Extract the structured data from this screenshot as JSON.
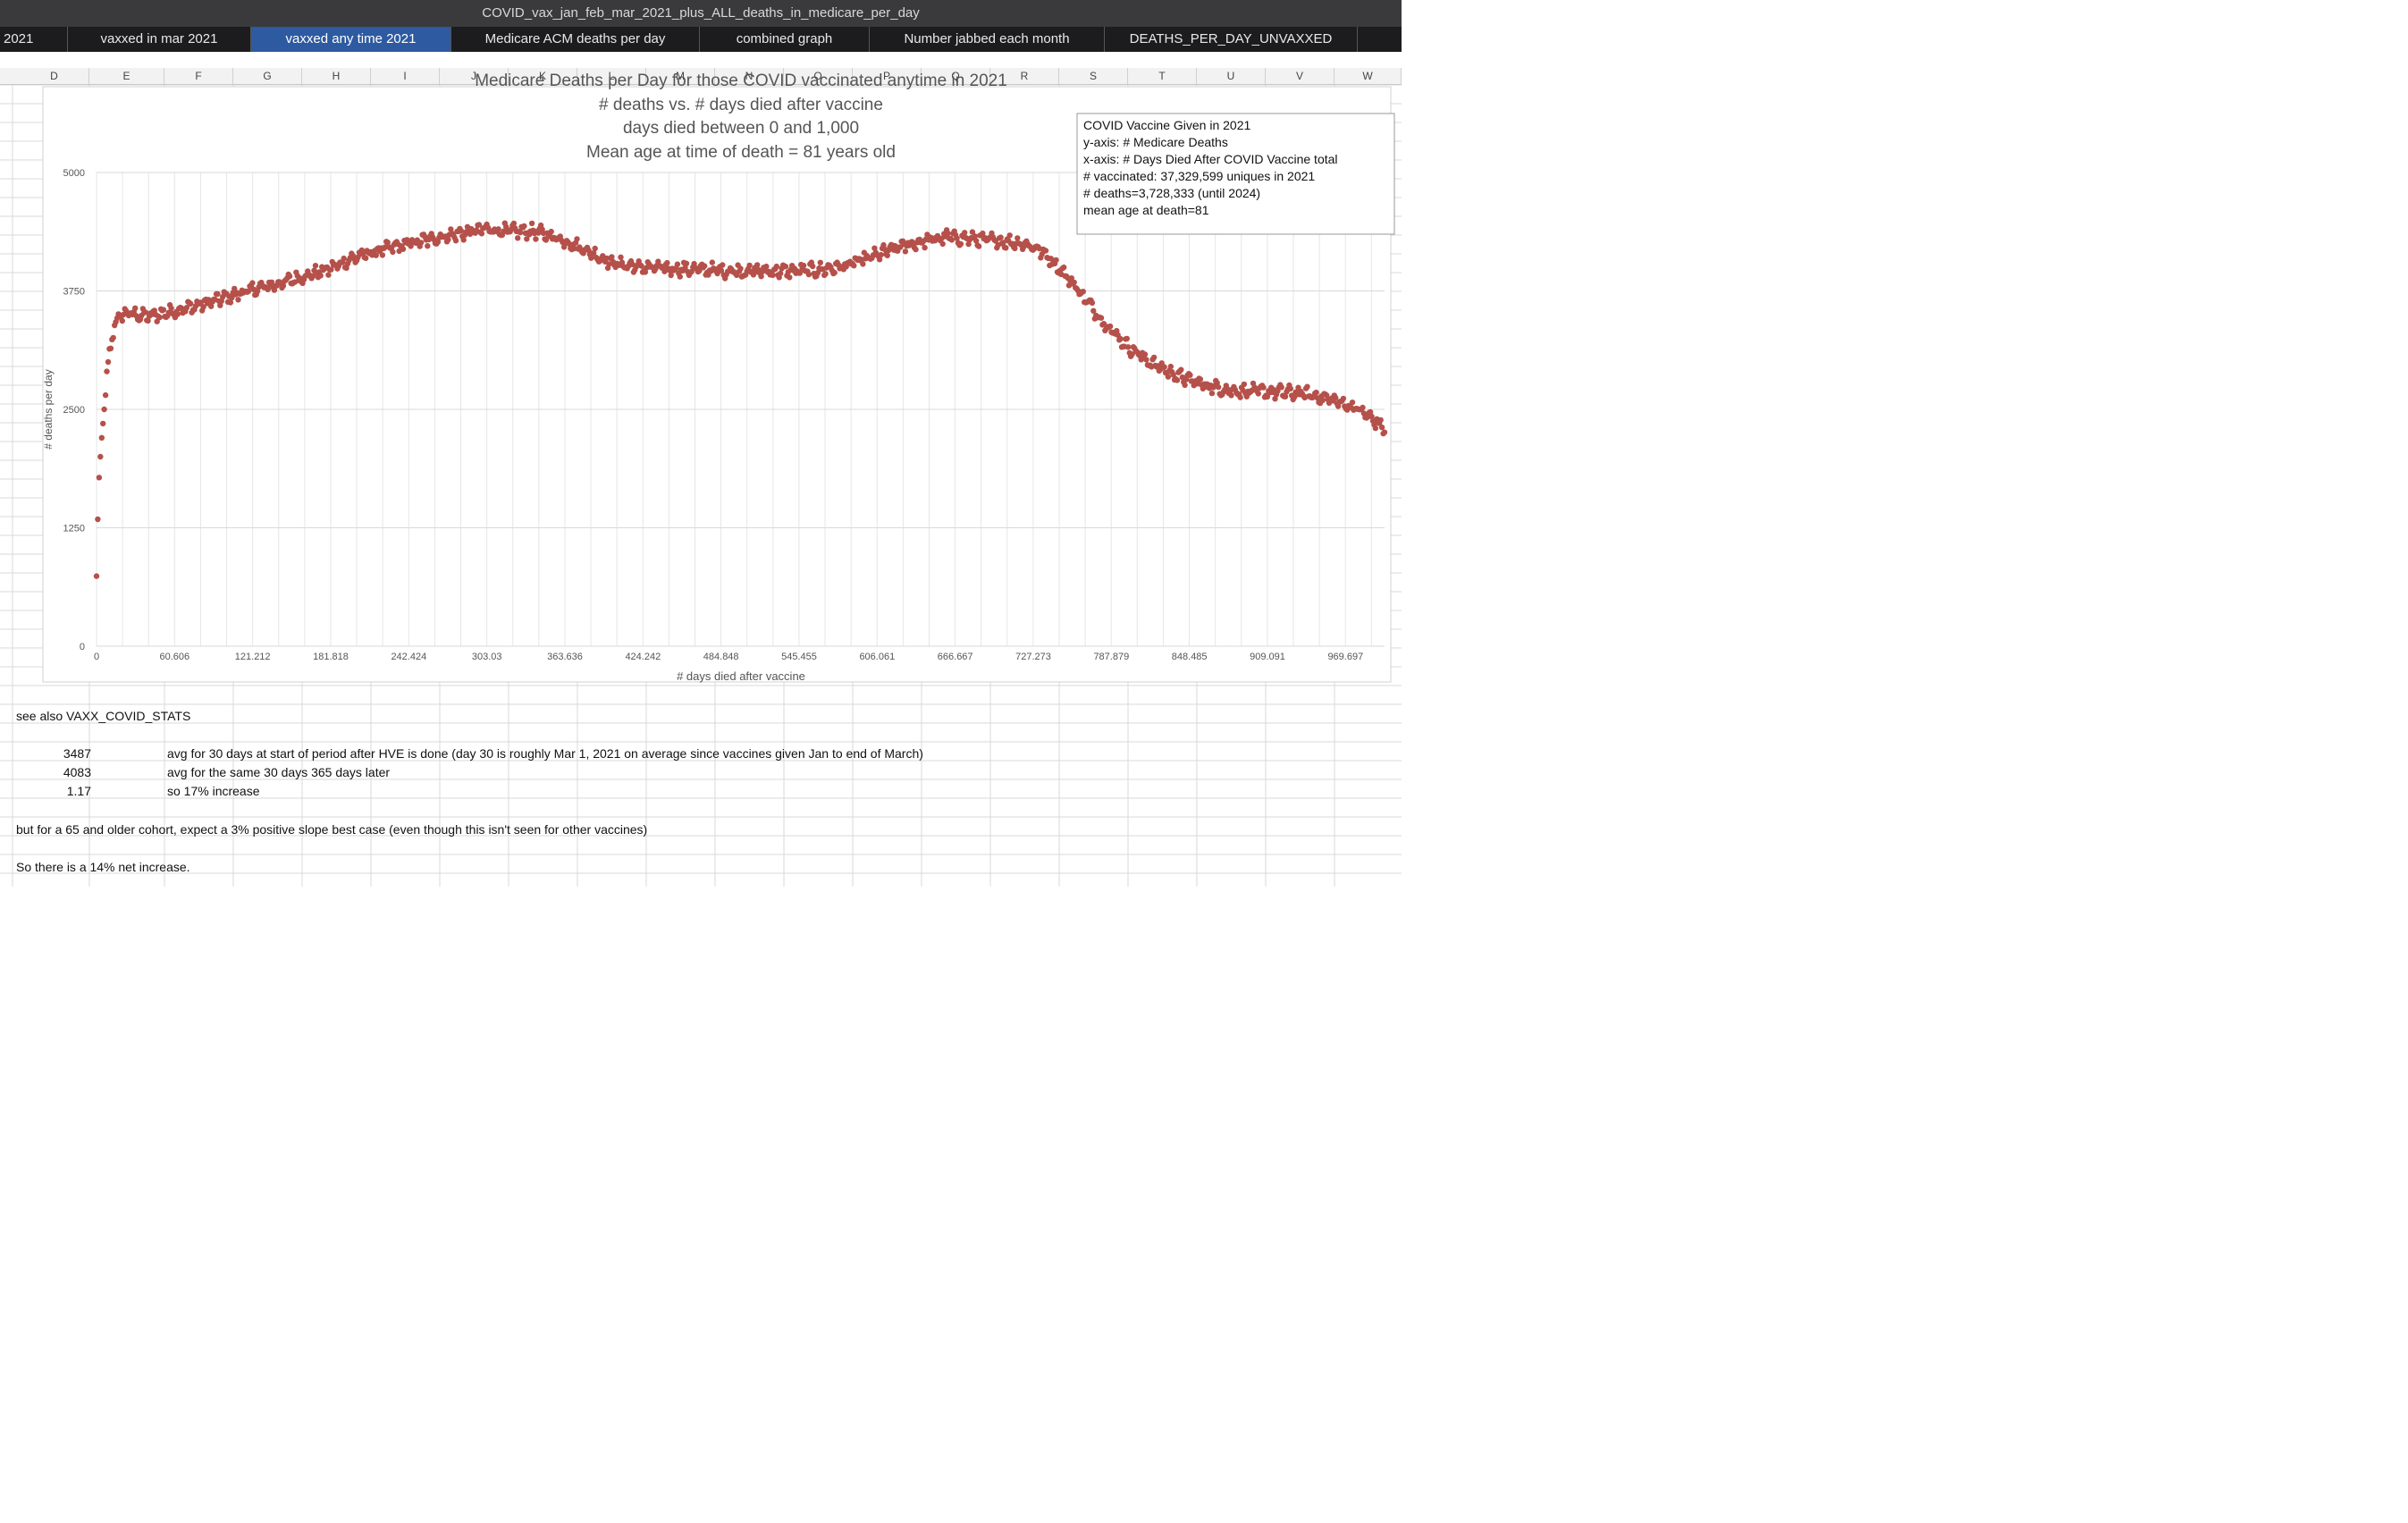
{
  "window": {
    "title": "COVID_vax_jan_feb_mar_2021_plus_ALL_deaths_in_medicare_per_day"
  },
  "sheet_tabs": [
    {
      "label": "2021",
      "active": false
    },
    {
      "label": "vaxxed in mar 2021",
      "active": false
    },
    {
      "label": "vaxxed any time 2021",
      "active": true
    },
    {
      "label": "Medicare ACM deaths per day",
      "active": false
    },
    {
      "label": "combined graph",
      "active": false
    },
    {
      "label": "Number jabbed each month",
      "active": false
    },
    {
      "label": "DEATHS_PER_DAY_UNVAXXED",
      "active": false
    }
  ],
  "column_headers": [
    "D",
    "E",
    "F",
    "G",
    "H",
    "I",
    "J",
    "K",
    "L",
    "M",
    "N",
    "O",
    "P",
    "Q",
    "R",
    "S",
    "T",
    "U",
    "V",
    "W"
  ],
  "chart_data": {
    "type": "scatter",
    "title_lines": [
      "Medicare Deaths per Day for those COVID vaccinated anytime in 2021",
      "# deaths vs. # days died after vaccine",
      "days died between 0 and 1,000",
      "Mean age at time of death = 81 years old"
    ],
    "xlabel": "# days died after vaccine",
    "ylabel": "# deaths per day",
    "xlim": [
      0,
      1000
    ],
    "ylim": [
      0,
      5000
    ],
    "x_tick_labels": [
      "0",
      "60.606",
      "121.212",
      "181.818",
      "242.424",
      "303.03",
      "363.636",
      "424.242",
      "484.848",
      "545.455",
      "606.061",
      "666.667",
      "727.273",
      "787.879",
      "848.485",
      "909.091",
      "969.697"
    ],
    "y_tick_labels": [
      "0",
      "1250",
      "2500",
      "3750",
      "5000"
    ],
    "y_ticks": [
      0,
      1250,
      2500,
      3750,
      5000
    ],
    "grid": true,
    "marker_color": "#b5504a",
    "annotation_lines": [
      "COVID Vaccine Given in 2021",
      "y-axis: # Medicare Deaths",
      "x-axis:  # Days Died After COVID Vaccine total",
      "# vaccinated: 37,329,599 uniques in 2021",
      "# deaths=3,728,333 (until 2024)",
      "mean age at death=81"
    ],
    "trend_x": [
      0,
      1,
      2,
      3,
      4,
      5,
      6,
      7,
      8,
      10,
      12,
      14,
      16,
      20,
      25,
      30,
      40,
      60,
      80,
      100,
      120,
      140,
      160,
      180,
      200,
      220,
      240,
      260,
      280,
      300,
      320,
      340,
      360,
      380,
      400,
      420,
      440,
      460,
      480,
      500,
      520,
      540,
      560,
      580,
      600,
      620,
      640,
      660,
      680,
      700,
      720,
      730,
      740,
      760,
      780,
      800,
      820,
      840,
      860,
      880,
      900,
      920,
      940,
      960,
      980,
      1000
    ],
    "trend_y": [
      740,
      1340,
      1780,
      2000,
      2200,
      2350,
      2500,
      2650,
      2900,
      3100,
      3250,
      3380,
      3450,
      3500,
      3520,
      3500,
      3480,
      3540,
      3600,
      3680,
      3760,
      3820,
      3900,
      3980,
      4100,
      4180,
      4240,
      4300,
      4350,
      4400,
      4380,
      4380,
      4300,
      4180,
      4050,
      4000,
      3990,
      3980,
      3970,
      3960,
      3960,
      3960,
      3970,
      4010,
      4100,
      4200,
      4270,
      4320,
      4300,
      4280,
      4250,
      4200,
      4100,
      3800,
      3450,
      3170,
      2980,
      2850,
      2760,
      2700,
      2690,
      2680,
      2660,
      2600,
      2500,
      2300
    ]
  },
  "notes": {
    "see_also": "see also VAXX_COVID_STATS",
    "row1_value": "3487",
    "row1_text": "avg for 30 days at start of period after HVE is done (day 30 is roughly Mar 1, 2021 on average since vaccines given Jan to end of March)",
    "row2_value": "4083",
    "row2_text": "avg for the same 30 days 365 days later",
    "row3_value": "1.17",
    "row3_text": "so 17% increase",
    "row4_text": "but for a 65 and older cohort, expect a 3% positive slope best case (even though this isn't seen for other vaccines)",
    "row5_text": "So there is a 14% net increase."
  }
}
